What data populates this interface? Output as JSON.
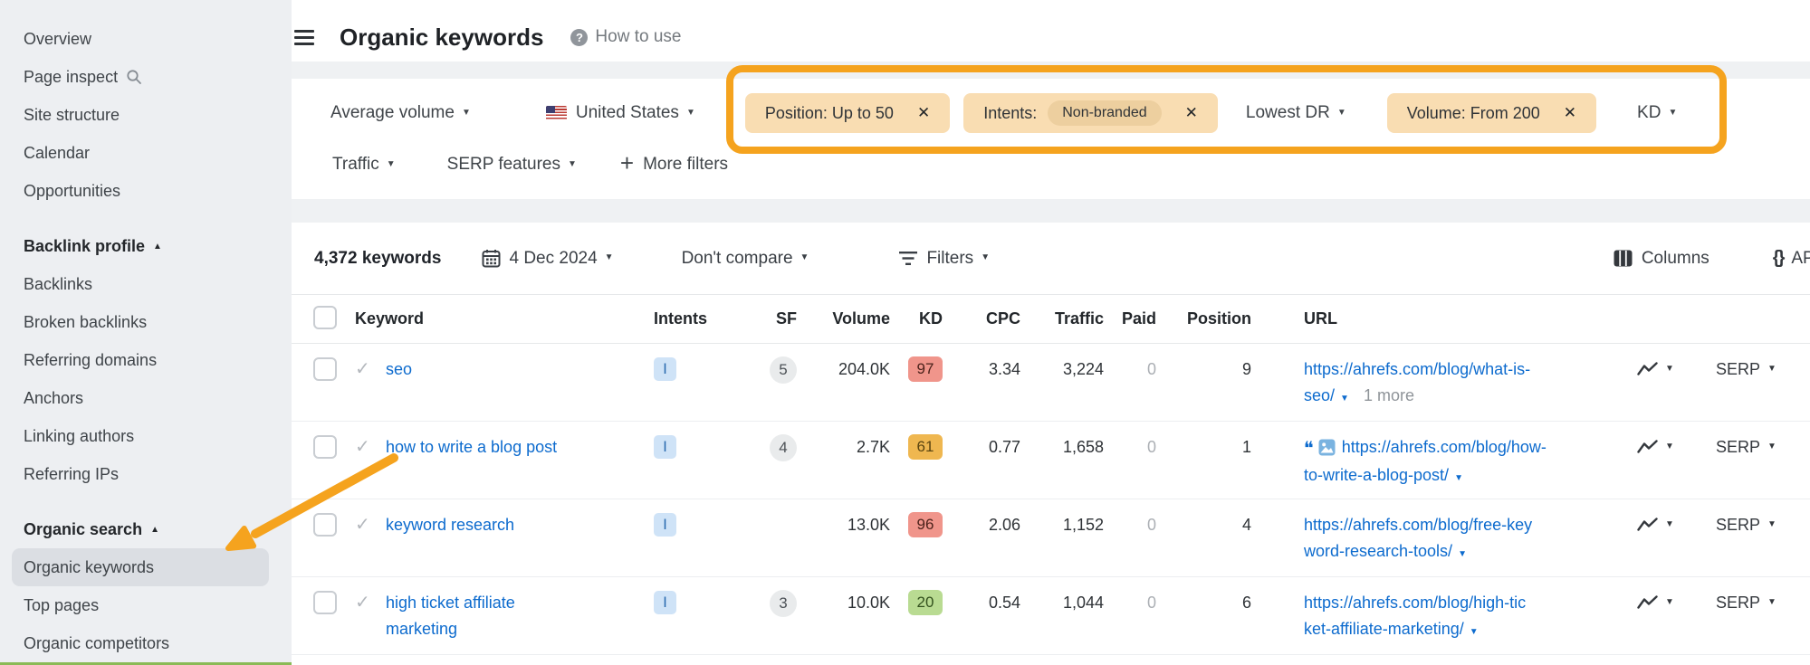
{
  "colors": {
    "annotation_orange": "#f5a31e",
    "link_blue": "#0d6bce",
    "chip_bg": "#f9ddb2",
    "intent_badge_bg": "#cfe3f7",
    "kd_red_bg": "#f0958b",
    "kd_amber_bg": "#efb750",
    "kd_green_bg": "#b9db92",
    "sidebar_selected_bg": "#dbdee3"
  },
  "sidebar": {
    "items": [
      {
        "label": "Overview",
        "type": "link"
      },
      {
        "label": "Page inspect",
        "type": "link",
        "icon": "search"
      },
      {
        "label": "Site structure",
        "type": "link"
      },
      {
        "label": "Calendar",
        "type": "link"
      },
      {
        "label": "Opportunities",
        "type": "link"
      },
      {
        "label": "Backlink profile",
        "type": "section",
        "arrow": "▲"
      },
      {
        "label": "Backlinks",
        "type": "link"
      },
      {
        "label": "Broken backlinks",
        "type": "link"
      },
      {
        "label": "Referring domains",
        "type": "link"
      },
      {
        "label": "Anchors",
        "type": "link"
      },
      {
        "label": "Linking authors",
        "type": "link"
      },
      {
        "label": "Referring IPs",
        "type": "link"
      },
      {
        "label": "Organic search",
        "type": "section",
        "arrow": "▲"
      },
      {
        "label": "Organic keywords",
        "type": "link",
        "selected": true
      },
      {
        "label": "Top pages",
        "type": "link"
      },
      {
        "label": "Organic competitors",
        "type": "link"
      }
    ]
  },
  "topbar": {
    "title": "Organic keywords",
    "help_icon": "?",
    "help": "How to use"
  },
  "filters": {
    "row1": [
      {
        "key": "average-volume",
        "type": "dropdown",
        "label": "Average volume"
      },
      {
        "key": "country",
        "type": "dropdown",
        "label": "United States",
        "flag": true
      },
      {
        "key": "position-filter",
        "type": "chip",
        "label": "Position: Up to 50"
      },
      {
        "key": "intents-filter",
        "type": "chip",
        "label": "Intents:",
        "pill": "Non-branded"
      },
      {
        "key": "lowest-dr",
        "type": "dropdown",
        "label": "Lowest DR"
      },
      {
        "key": "volume-filter",
        "type": "chip",
        "label": "Volume: From 200"
      },
      {
        "key": "kd",
        "type": "dropdown",
        "label": "KD"
      }
    ],
    "row2": [
      {
        "key": "traffic",
        "type": "dropdown",
        "label": "Traffic"
      },
      {
        "key": "serp-features",
        "type": "dropdown",
        "label": "SERP features"
      },
      {
        "key": "more-filters",
        "type": "more",
        "label": "More filters"
      }
    ]
  },
  "toolbar": {
    "count": "4,372 keywords",
    "date": "4 Dec 2024",
    "compare": "Don't compare",
    "filters": "Filters",
    "columns": "Columns",
    "api": "API"
  },
  "table": {
    "headers": {
      "keyword": "Keyword",
      "intents": "Intents",
      "sf": "SF",
      "volume": "Volume",
      "kd": "KD",
      "cpc": "CPC",
      "traffic": "Traffic",
      "paid": "Paid",
      "position": "Position",
      "url": "URL"
    },
    "serp_label": "SERP",
    "rows": [
      {
        "keyword_lines": [
          "seo"
        ],
        "intents": "I",
        "sf": "5",
        "volume": "204.0K",
        "kd": "97",
        "kd_bg": "#f0958b",
        "kd_text": "#4c221b",
        "cpc": "3.34",
        "traffic": "3,224",
        "paid": "0",
        "position": "9",
        "url_lines": [
          "https://ahrefs.com/blog/what-is-",
          "seo/"
        ],
        "url_more": "1 more"
      },
      {
        "keyword_lines": [
          "how to write a blog post"
        ],
        "intents": "I",
        "sf": "4",
        "volume": "2.7K",
        "kd": "61",
        "kd_bg": "#efb750",
        "kd_text": "#5a4410",
        "cpc": "0.77",
        "traffic": "1,658",
        "paid": "0",
        "position": "1",
        "url_lines": [
          "https://ahrefs.com/blog/how-",
          "to-write-a-blog-post/"
        ],
        "url_icons": true
      },
      {
        "keyword_lines": [
          "keyword research"
        ],
        "intents": "I",
        "sf": "",
        "volume": "13.0K",
        "kd": "96",
        "kd_bg": "#f0958b",
        "kd_text": "#4c221b",
        "cpc": "2.06",
        "traffic": "1,152",
        "paid": "0",
        "position": "4",
        "url_lines": [
          "https://ahrefs.com/blog/free-key",
          "word-research-tools/"
        ]
      },
      {
        "keyword_lines": [
          "high ticket affiliate",
          "marketing"
        ],
        "intents": "I",
        "sf": "3",
        "volume": "10.0K",
        "kd": "20",
        "kd_bg": "#b9db92",
        "kd_text": "#33511d",
        "cpc": "0.54",
        "traffic": "1,044",
        "paid": "0",
        "position": "6",
        "url_lines": [
          "https://ahrefs.com/blog/high-tic",
          "ket-affiliate-marketing/"
        ]
      }
    ]
  }
}
